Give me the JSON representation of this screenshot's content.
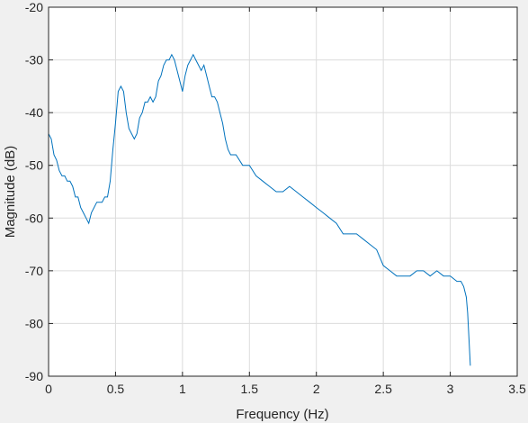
{
  "chart_data": {
    "type": "line",
    "title": "",
    "xlabel": "Frequency (Hz)",
    "ylabel": "Magnitude (dB)",
    "xlim": [
      0,
      3.5
    ],
    "ylim": [
      -90,
      -20
    ],
    "xticks": [
      0,
      0.5,
      1,
      1.5,
      2,
      2.5,
      3,
      3.5
    ],
    "xtick_labels": [
      "0",
      "0.5",
      "1",
      "1.5",
      "2",
      "2.5",
      "3",
      "3.5"
    ],
    "yticks": [
      -90,
      -80,
      -70,
      -60,
      -50,
      -40,
      -30,
      -20
    ],
    "ytick_labels": [
      "-90",
      "-80",
      "-70",
      "-60",
      "-50",
      "-40",
      "-30",
      "-20"
    ],
    "grid": true,
    "line_color": "#0072BD",
    "series": [
      {
        "x": [
          0.0,
          0.02,
          0.04,
          0.06,
          0.08,
          0.1,
          0.12,
          0.14,
          0.16,
          0.18,
          0.2,
          0.22,
          0.24,
          0.26,
          0.28,
          0.3,
          0.32,
          0.34,
          0.36,
          0.38,
          0.4,
          0.42,
          0.44,
          0.46,
          0.48,
          0.5,
          0.52,
          0.54,
          0.56,
          0.58,
          0.6,
          0.62,
          0.64,
          0.66,
          0.68,
          0.7,
          0.72,
          0.74,
          0.76,
          0.78,
          0.8,
          0.82,
          0.84,
          0.86,
          0.88,
          0.9,
          0.92,
          0.94,
          0.96,
          0.98,
          1.0,
          1.02,
          1.04,
          1.06,
          1.08,
          1.1,
          1.12,
          1.14,
          1.16,
          1.18,
          1.2,
          1.22,
          1.24,
          1.26,
          1.28,
          1.3,
          1.32,
          1.34,
          1.36,
          1.38,
          1.4,
          1.45,
          1.5,
          1.55,
          1.6,
          1.65,
          1.7,
          1.75,
          1.8,
          1.85,
          1.9,
          1.95,
          2.0,
          2.05,
          2.1,
          2.15,
          2.2,
          2.25,
          2.3,
          2.35,
          2.4,
          2.45,
          2.5,
          2.55,
          2.6,
          2.65,
          2.7,
          2.75,
          2.8,
          2.85,
          2.9,
          2.95,
          3.0,
          3.05,
          3.08,
          3.1,
          3.12,
          3.13,
          3.14,
          3.15
        ],
        "y": [
          -44,
          -45,
          -48,
          -49,
          -51,
          -52,
          -52,
          -53,
          -53,
          -54,
          -56,
          -56,
          -58,
          -59,
          -60,
          -61,
          -59,
          -58,
          -57,
          -57,
          -57,
          -56,
          -56,
          -53,
          -47,
          -42,
          -36,
          -35,
          -36,
          -40,
          -43,
          -44,
          -45,
          -44,
          -41,
          -40,
          -38,
          -38,
          -37,
          -38,
          -37,
          -34,
          -33,
          -31,
          -30,
          -30,
          -29,
          -30,
          -32,
          -34,
          -36,
          -33,
          -31,
          -30,
          -29,
          -30,
          -31,
          -32,
          -31,
          -33,
          -35,
          -37,
          -37,
          -38,
          -40,
          -42,
          -45,
          -47,
          -48,
          -48,
          -48,
          -50,
          -50,
          -52,
          -53,
          -54,
          -55,
          -55,
          -54,
          -55,
          -56,
          -57,
          -58,
          -59,
          -60,
          -61,
          -63,
          -63,
          -63,
          -64,
          -65,
          -66,
          -69,
          -70,
          -71,
          -71,
          -71,
          -70,
          -70,
          -71,
          -70,
          -71,
          -71,
          -72,
          -72,
          -73,
          -75,
          -78,
          -83,
          -88
        ]
      }
    ]
  }
}
